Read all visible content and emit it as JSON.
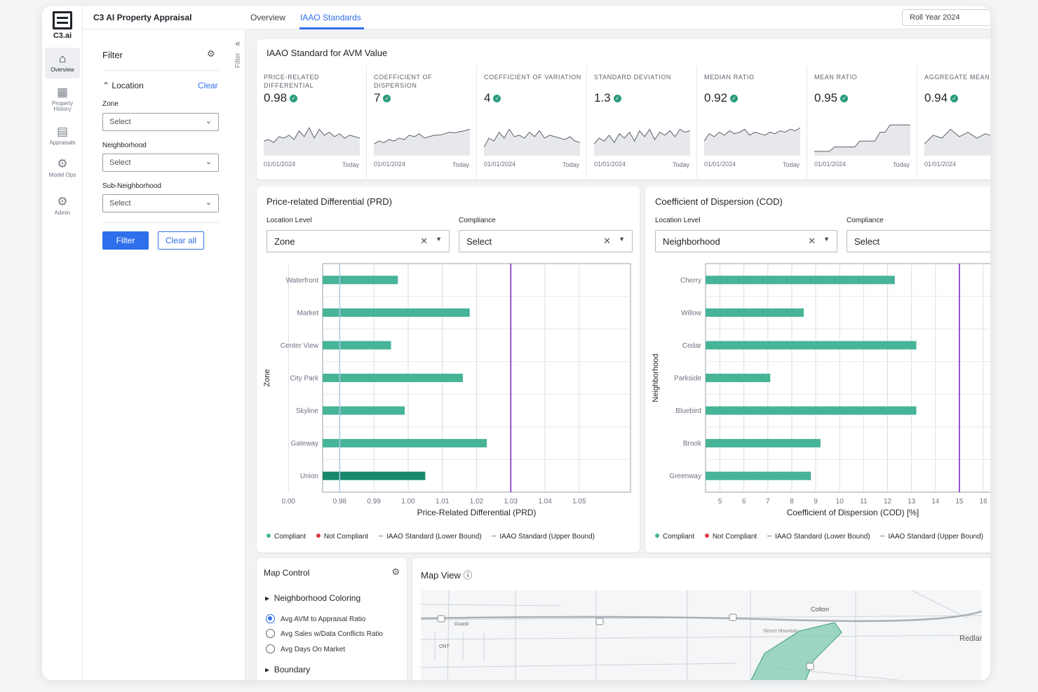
{
  "logo": {
    "text": "C3.ai"
  },
  "nav": [
    {
      "label": "Overview",
      "icon": "home-icon",
      "glyph": "⌂"
    },
    {
      "label": "Property History",
      "icon": "property-history-icon",
      "glyph": "▦"
    },
    {
      "label": "Appraisals",
      "icon": "appraisals-icon",
      "glyph": "▤"
    },
    {
      "label": "Model Ops",
      "icon": "model-ops-icon",
      "glyph": "⚙"
    },
    {
      "label": "Admin",
      "icon": "admin-icon",
      "glyph": "⚙"
    }
  ],
  "header": {
    "app_title": "C3 AI Property Appraisal",
    "tabs": [
      "Overview",
      "IAAO Standards"
    ],
    "active_tab": "IAAO Standards",
    "roll_year": "Roll Year 2024"
  },
  "filter": {
    "title": "Filter",
    "location_label": "Location",
    "clear_label": "Clear",
    "zone_label": "Zone",
    "zone_value": "Select",
    "neighborhood_label": "Neighborhood",
    "neighborhood_value": "Select",
    "subneighborhood_label": "Sub-Neighborhood",
    "subneighborhood_value": "Select",
    "filter_button": "Filter",
    "clear_all_button": "Clear all",
    "collapsed_label": "Filter"
  },
  "kpi": {
    "title": "IAAO Standard for AVM Value",
    "start_label": "01/01/2024",
    "end_label": "Today",
    "status_color": "#2b9a7d",
    "items": [
      {
        "label": "PRICE-RELATED DIFFERENTIAL",
        "value": "0.98",
        "trend": [
          0.4,
          0.45,
          0.35,
          0.55,
          0.5,
          0.6,
          0.45,
          0.75,
          0.55,
          0.85,
          0.5,
          0.8,
          0.6,
          0.7,
          0.55,
          0.65,
          0.5,
          0.6,
          0.55,
          0.5
        ]
      },
      {
        "label": "COEFFICIENT OF DISPERSION",
        "value": "7",
        "trend": [
          0.3,
          0.4,
          0.35,
          0.45,
          0.4,
          0.5,
          0.45,
          0.6,
          0.55,
          0.65,
          0.5,
          0.55,
          0.6,
          0.6,
          0.65,
          0.7,
          0.68,
          0.72,
          0.75,
          0.8
        ]
      },
      {
        "label": "COEFFICIENT OF VARIATION",
        "value": "4",
        "trend": [
          0.2,
          0.5,
          0.4,
          0.7,
          0.5,
          0.8,
          0.55,
          0.6,
          0.5,
          0.7,
          0.55,
          0.75,
          0.5,
          0.6,
          0.55,
          0.5,
          0.45,
          0.55,
          0.4,
          0.35
        ]
      },
      {
        "label": "STANDARD DEVIATION",
        "value": "1.3",
        "trend": [
          0.3,
          0.5,
          0.4,
          0.6,
          0.35,
          0.65,
          0.5,
          0.7,
          0.4,
          0.75,
          0.55,
          0.8,
          0.45,
          0.7,
          0.6,
          0.75,
          0.55,
          0.8,
          0.7,
          0.75
        ]
      },
      {
        "label": "MEDIAN RATIO",
        "value": "0.92",
        "trend": [
          0.4,
          0.65,
          0.55,
          0.7,
          0.6,
          0.75,
          0.65,
          0.7,
          0.8,
          0.6,
          0.7,
          0.65,
          0.6,
          0.7,
          0.65,
          0.75,
          0.7,
          0.8,
          0.75,
          0.85
        ]
      },
      {
        "label": "MEAN RATIO",
        "value": "0.95",
        "trend": [
          0.05,
          0.05,
          0.05,
          0.05,
          0.2,
          0.2,
          0.2,
          0.2,
          0.2,
          0.4,
          0.4,
          0.4,
          0.4,
          0.7,
          0.7,
          0.95,
          0.95,
          0.95,
          0.95,
          0.95
        ]
      },
      {
        "label": "AGGREGATE MEAN",
        "value": "0.94",
        "trend": [
          0.3,
          0.6,
          0.5,
          0.8,
          0.55,
          0.7,
          0.5,
          0.65,
          0.55,
          0.7,
          0.6,
          0.55
        ]
      }
    ]
  },
  "prd": {
    "title": "Price-related Differential (PRD)",
    "location_level_label": "Location Level",
    "location_level_value": "Zone",
    "compliance_label": "Compliance",
    "compliance_value": "Select",
    "legend": {
      "compliant": "Compliant",
      "not_compliant": "Not Compliant",
      "lower": "IAAO Standard (Lower Bound)",
      "upper": "IAAO Standard (Upper Bound)"
    }
  },
  "cod": {
    "title": "Coefficient of Dispersion (COD)",
    "location_level_label": "Location Level",
    "location_level_value": "Neighborhood",
    "compliance_label": "Compliance",
    "compliance_value": "Select",
    "legend": {
      "compliant": "Compliant",
      "not_compliant": "Not Compliant",
      "lower": "IAAO Standard (Lower Bound)",
      "upper": "IAAO Standard (Upper Bound)"
    }
  },
  "chart_data": [
    {
      "type": "bar",
      "orientation": "horizontal",
      "title": "Price-related Differential (PRD)",
      "xlabel": "Price-Related Differential (PRD)",
      "ylabel": "Zone",
      "categories": [
        "Waterfront",
        "Market",
        "Center View",
        "City Park",
        "Skyline",
        "Gateway",
        "Union"
      ],
      "values": [
        0.997,
        1.018,
        0.995,
        1.016,
        0.999,
        1.023,
        1.005
      ],
      "xticks": [
        "0.00",
        "0.98",
        "0.99",
        "1.00",
        "1.01",
        "1.02",
        "1.03",
        "1.04",
        "1.05"
      ],
      "xticks_values": [
        0.965,
        0.98,
        0.99,
        1.0,
        1.01,
        1.02,
        1.03,
        1.04,
        1.05
      ],
      "xlim": [
        0.975,
        1.065
      ],
      "lower_bound": 0.98,
      "upper_bound": 1.03,
      "bar_colors": [
        "#47b397",
        "#47b397",
        "#47b397",
        "#47b397",
        "#47b397",
        "#47b397",
        "#17896b"
      ],
      "lower_color": "#a8c8e8",
      "upper_color": "#8a3fd1",
      "grid": true
    },
    {
      "type": "bar",
      "orientation": "horizontal",
      "title": "Coefficient of Dispersion (COD)",
      "xlabel": "Coefficient of Dispersion (COD) [%]",
      "ylabel": "Neighborhood",
      "categories": [
        "Cherry",
        "Willow",
        "Cedar",
        "Parkside",
        "Bluebird",
        "Brook",
        "Greenway"
      ],
      "values": [
        12.3,
        8.5,
        13.2,
        7.1,
        13.2,
        9.2,
        8.8
      ],
      "xticks": [
        "5",
        "6",
        "7",
        "8",
        "9",
        "10",
        "11",
        "12",
        "13",
        "14",
        "15",
        "16"
      ],
      "xlim": [
        4.4,
        16.7
      ],
      "upper_bound": 15,
      "bar_color": "#47b397",
      "upper_color": "#8a3fd1",
      "grid": true
    }
  ],
  "map_control": {
    "title": "Map Control",
    "coloring_label": "Neighborhood Coloring",
    "options": [
      "Avg AVM to Appraisal Ratio",
      "Avg Sales w/Data Conflicts Ratio",
      "Avg Days On Market"
    ],
    "selected": "Avg AVM to Appraisal Ratio",
    "boundary_label": "Boundary"
  },
  "map_view": {
    "title": "Map View ⓘ",
    "places": [
      "Colton",
      "Redlar",
      "Guasti",
      "ONT",
      "Slover Mountain"
    ]
  }
}
